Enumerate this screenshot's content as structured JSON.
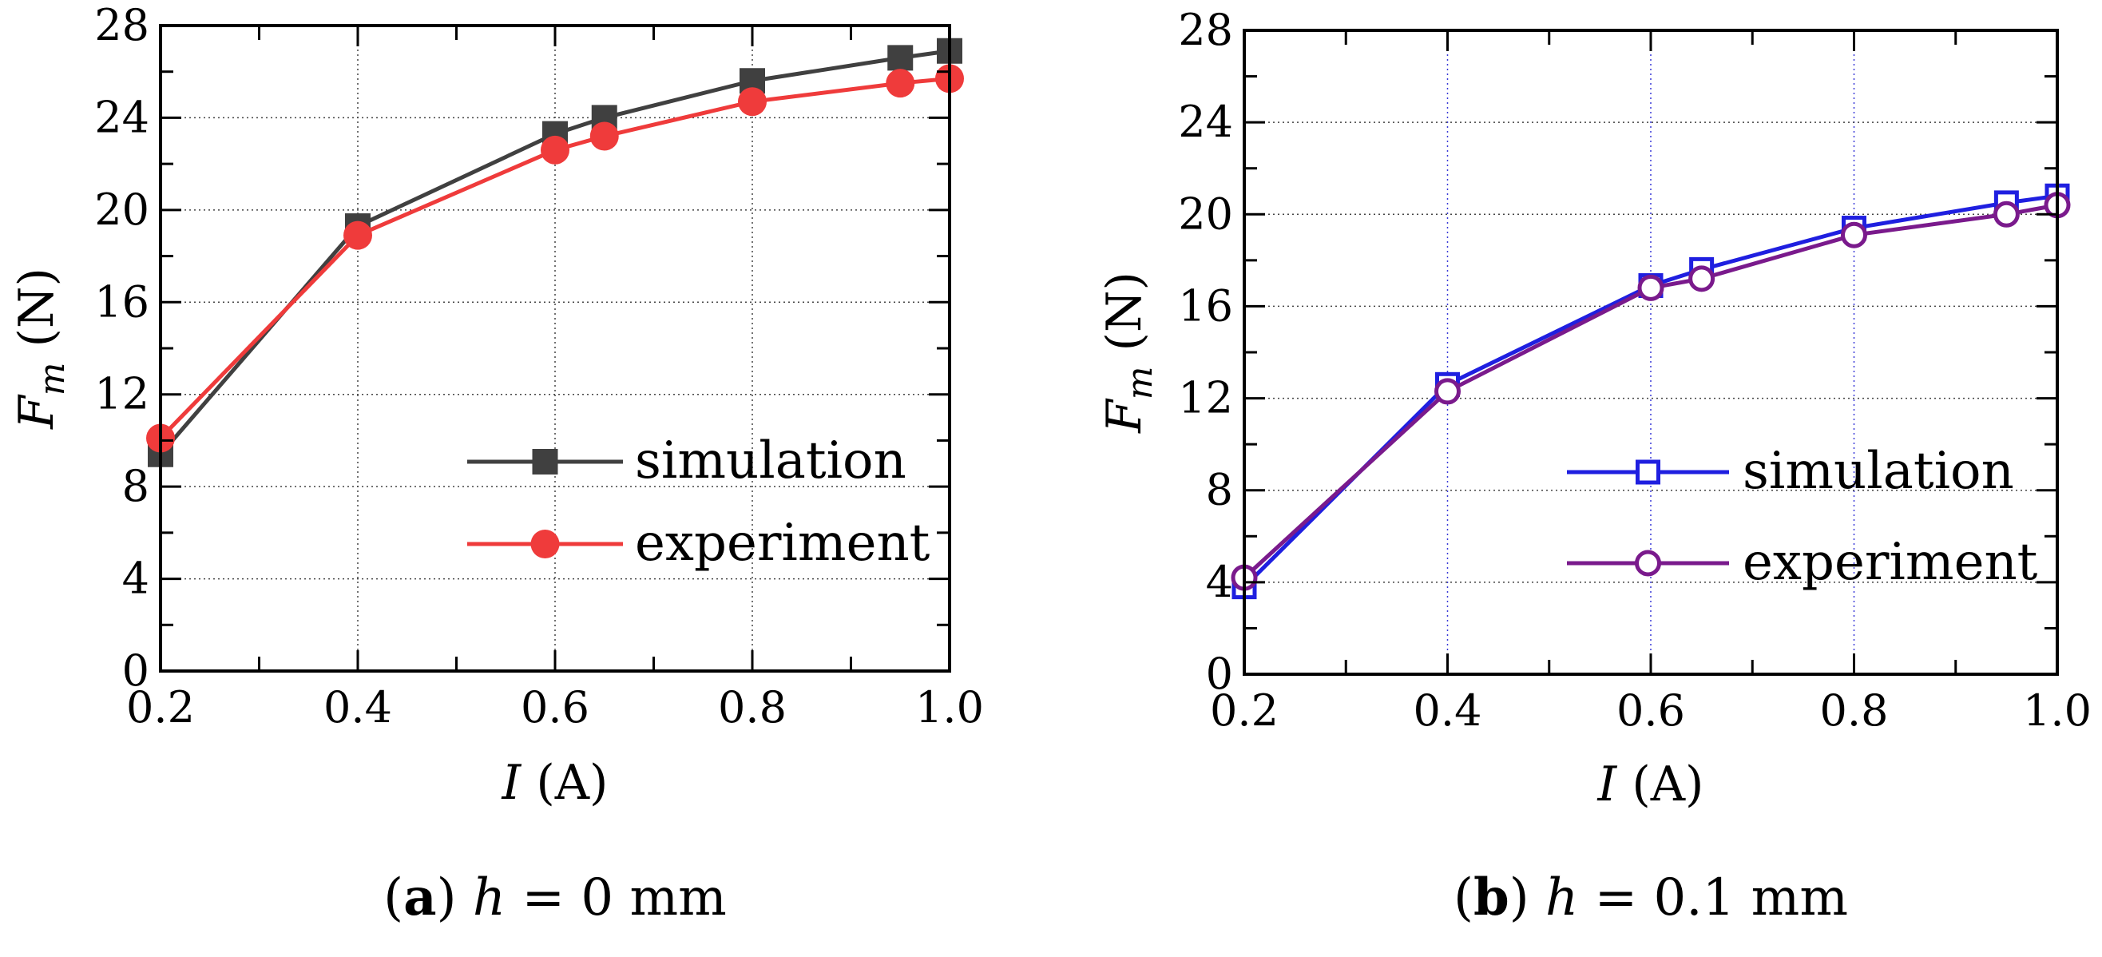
{
  "chart_data": [
    {
      "type": "line",
      "panel": "a",
      "caption_letter": "a",
      "caption_var": "h",
      "caption_rest": " = 0 mm",
      "xlabel_var": "I",
      "xlabel_unit": "(A)",
      "ylabel_var": "F",
      "ylabel_sub": "m",
      "ylabel_unit": "(N)",
      "xlim": [
        0.2,
        1.0
      ],
      "ylim": [
        0,
        28
      ],
      "xticks": [
        "0.2",
        "0.4",
        "0.6",
        "0.8",
        "1.0"
      ],
      "yticks": [
        "0",
        "4",
        "8",
        "12",
        "16",
        "20",
        "24",
        "28"
      ],
      "grid": true,
      "legend_position": "bottom-right",
      "series": [
        {
          "name": "simulation",
          "color": "#404040",
          "marker": "filled-square",
          "x": [
            0.2,
            0.4,
            0.6,
            0.65,
            0.8,
            0.95,
            1.0
          ],
          "y": [
            9.4,
            19.3,
            23.3,
            24.0,
            25.6,
            26.6,
            26.9
          ]
        },
        {
          "name": "experiment",
          "color": "#ef3b3b",
          "marker": "filled-circle",
          "x": [
            0.2,
            0.4,
            0.6,
            0.65,
            0.8,
            0.95,
            1.0
          ],
          "y": [
            10.1,
            18.9,
            22.6,
            23.2,
            24.7,
            25.5,
            25.7
          ]
        }
      ]
    },
    {
      "type": "line",
      "panel": "b",
      "caption_letter": "b",
      "caption_var": "h",
      "caption_rest": " = 0.1 mm",
      "xlabel_var": "I",
      "xlabel_unit": "(A)",
      "ylabel_var": "F",
      "ylabel_sub": "m",
      "ylabel_unit": "(N)",
      "xlim": [
        0.2,
        1.0
      ],
      "ylim": [
        0,
        28
      ],
      "xticks": [
        "0.2",
        "0.4",
        "0.6",
        "0.8",
        "1.0"
      ],
      "yticks": [
        "0",
        "4",
        "8",
        "12",
        "16",
        "20",
        "24",
        "28"
      ],
      "grid": true,
      "legend_position": "middle-right",
      "series": [
        {
          "name": "simulation",
          "color": "#1f1fe0",
          "marker": "open-square",
          "x": [
            0.2,
            0.4,
            0.6,
            0.65,
            0.8,
            0.95,
            1.0
          ],
          "y": [
            3.8,
            12.6,
            16.9,
            17.6,
            19.4,
            20.5,
            20.8
          ]
        },
        {
          "name": "experiment",
          "color": "#7a1a8c",
          "marker": "open-circle",
          "x": [
            0.2,
            0.4,
            0.6,
            0.65,
            0.8,
            0.95,
            1.0
          ],
          "y": [
            4.2,
            12.3,
            16.8,
            17.2,
            19.1,
            20.0,
            20.4
          ]
        }
      ]
    }
  ]
}
